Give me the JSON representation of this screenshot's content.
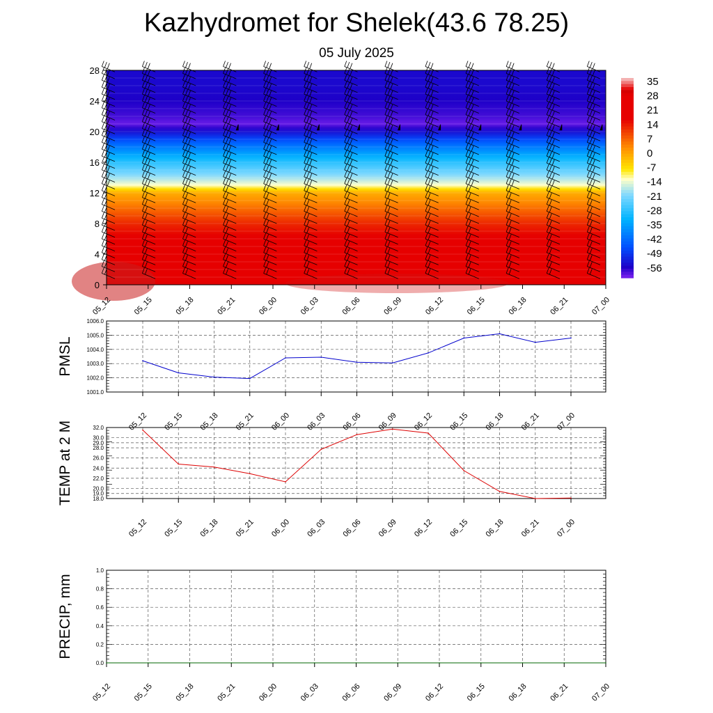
{
  "title": "Kazhydromet for Shelek(43.6 78.25)",
  "subtitle": "05 July 2025",
  "time_labels": [
    "05_12",
    "05_15",
    "05_18",
    "05_21",
    "06_00",
    "06_03",
    "06_06",
    "06_09",
    "06_12",
    "06_15",
    "06_18",
    "06_21",
    "07_00"
  ],
  "chart_data": [
    {
      "type": "heatmap",
      "title": "",
      "xlabel": "",
      "ylabel": "",
      "x": [
        "05_12",
        "05_15",
        "05_18",
        "05_21",
        "06_00",
        "06_03",
        "06_06",
        "06_09",
        "06_12",
        "06_15",
        "06_18",
        "06_21",
        "07_00"
      ],
      "y_ticks": [
        0,
        4,
        8,
        12,
        16,
        20,
        24,
        28
      ],
      "ylim": [
        0,
        28
      ],
      "colorbar_labels": [
        "35",
        "28",
        "21",
        "14",
        "7",
        "0",
        "-7",
        "-14",
        "-21",
        "-28",
        "-35",
        "-42",
        "-49",
        "-56"
      ],
      "temperature_profile": {
        "levels": [
          0,
          1,
          2,
          3,
          4,
          6,
          8,
          10,
          12,
          13,
          14,
          16,
          18,
          20,
          21,
          22,
          24,
          26,
          28
        ],
        "values": [
          31,
          29,
          27,
          25,
          23,
          19,
          14,
          7,
          0,
          -12,
          -18,
          -28,
          -40,
          -54,
          -60,
          -58,
          -56,
          -55,
          -55
        ]
      },
      "colors": {
        "warm_dark": "#b40000",
        "red": "#e60000",
        "orange": "#ff8c00",
        "yellow": "#ffe600",
        "pale": "#ffffc8",
        "light_blue": "#7fd8ff",
        "cyan": "#00b4ff",
        "blue": "#0050ff",
        "deep_blue": "#1e00c8",
        "violet": "#8c28f5"
      },
      "wind_barbs": true
    },
    {
      "type": "line",
      "title": "",
      "ylabel": "PMSL",
      "x": [
        "05_12",
        "05_15",
        "05_18",
        "05_21",
        "06_00",
        "06_03",
        "06_06",
        "06_09",
        "06_12",
        "06_15",
        "06_18",
        "06_21",
        "07_00"
      ],
      "series": [
        {
          "values": [
            1003.2,
            1002.35,
            1002.05,
            1001.95,
            1003.4,
            1003.45,
            1003.1,
            1003.05,
            1003.75,
            1004.8,
            1005.1,
            1004.5,
            1004.8
          ],
          "color": "#0000cc"
        }
      ],
      "ylim": [
        1001.0,
        1006.0
      ],
      "y_ticks": [
        "1001.0",
        "1002.0",
        "1003.0",
        "1004.0",
        "1005.0",
        "1006.0"
      ],
      "grid": true
    },
    {
      "type": "line",
      "title": "",
      "ylabel": "TEMP at 2 M",
      "x": [
        "05_12",
        "05_15",
        "05_18",
        "05_21",
        "06_00",
        "06_03",
        "06_06",
        "06_09",
        "06_12",
        "06_15",
        "06_18",
        "06_21",
        "07_00"
      ],
      "series": [
        {
          "values": [
            31.5,
            24.8,
            24.2,
            22.9,
            21.3,
            27.7,
            30.6,
            31.7,
            30.9,
            23.5,
            19.4,
            18.0,
            18.1
          ],
          "color": "#dd0000"
        }
      ],
      "ylim": [
        18.0,
        32.0
      ],
      "y_ticks": [
        "18.0",
        "19.0",
        "20.0",
        "22.0",
        "24.0",
        "26.0",
        "28.0",
        "29.0",
        "30.0",
        "32.0"
      ],
      "grid": true
    },
    {
      "type": "line",
      "title": "",
      "ylabel": "PRECIP, mm",
      "x": [
        "05_12",
        "05_15",
        "05_18",
        "05_21",
        "06_00",
        "06_03",
        "06_06",
        "06_09",
        "06_12",
        "06_15",
        "06_18",
        "06_21",
        "07_00"
      ],
      "series": [
        {
          "values": [
            0,
            0,
            0,
            0,
            0,
            0,
            0,
            0,
            0,
            0,
            0,
            0,
            0
          ],
          "color": "#006400"
        }
      ],
      "ylim": [
        0.0,
        1.0
      ],
      "y_ticks": [
        "0.0",
        "0.2",
        "0.4",
        "0.6",
        "0.8",
        "1.0"
      ],
      "grid": true
    }
  ]
}
